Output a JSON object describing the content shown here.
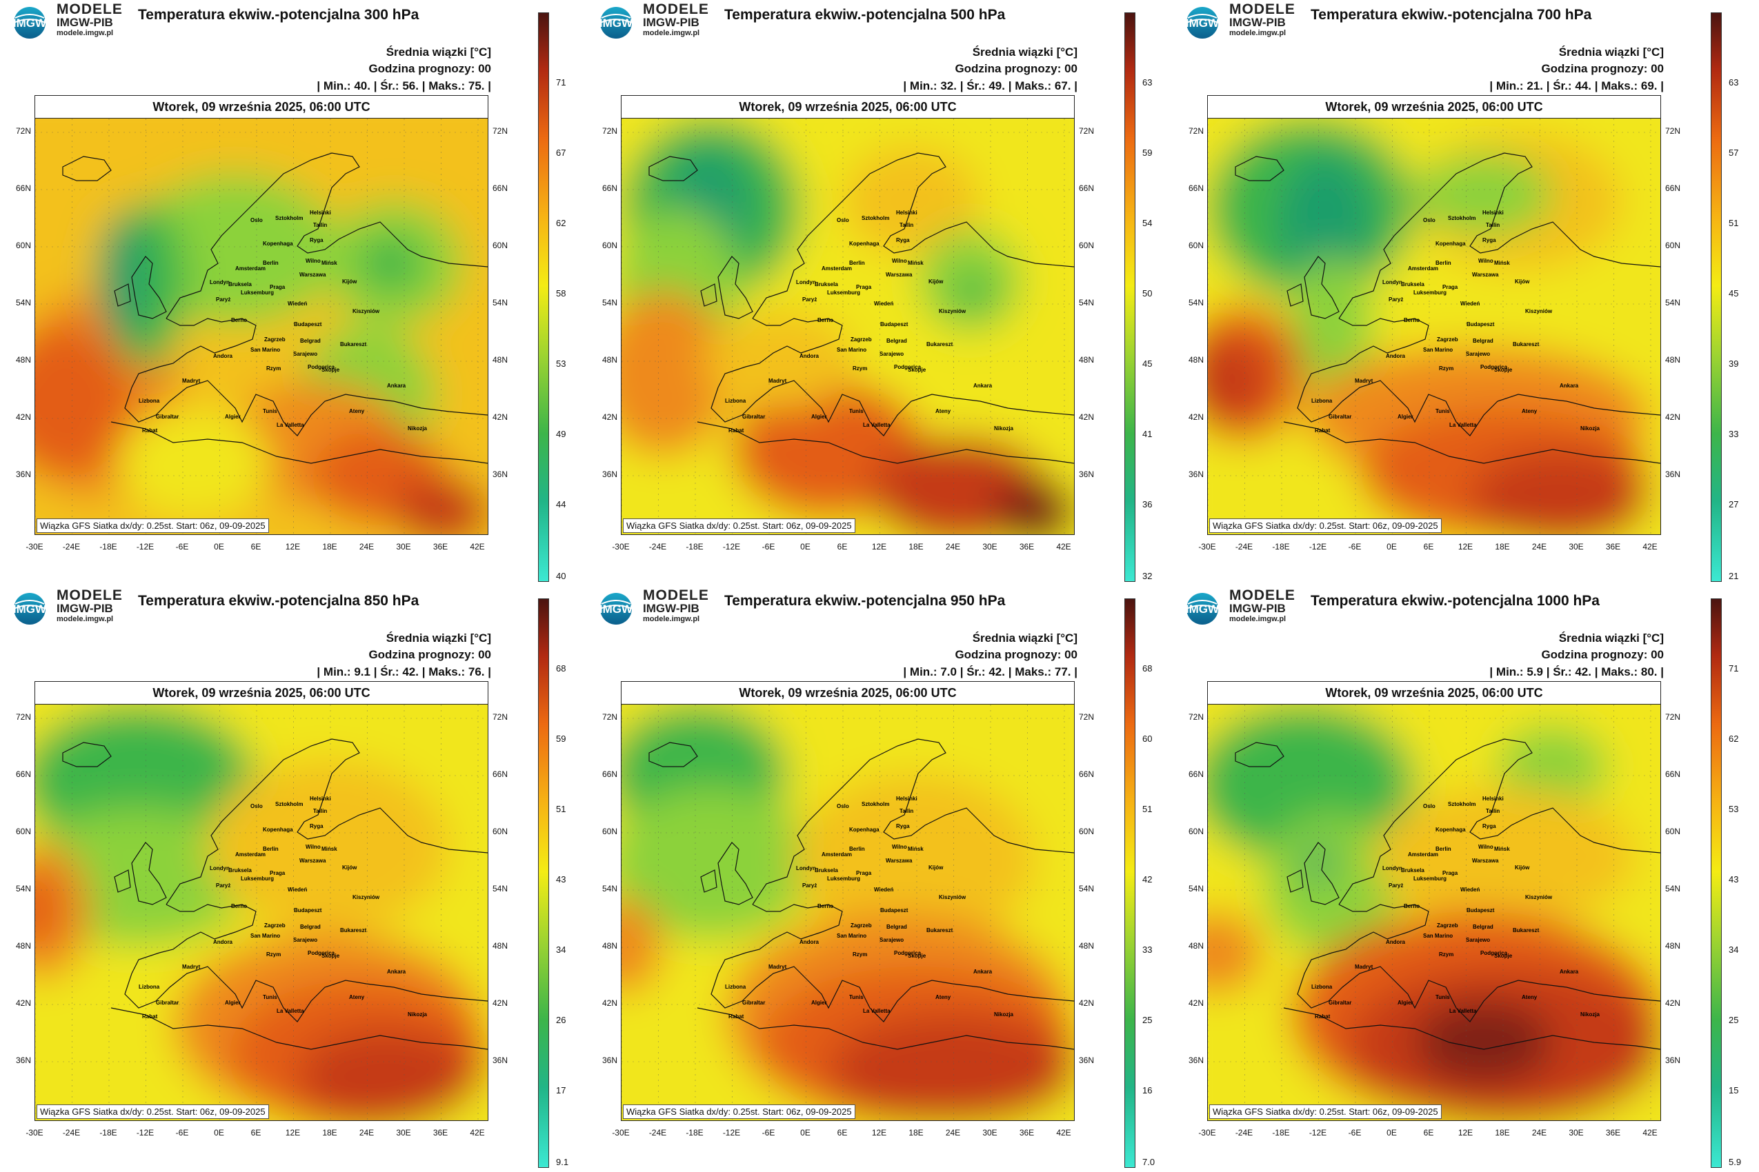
{
  "brand": {
    "line1": "MODELE",
    "line2": "IMGW-PIB",
    "line3": "modele.imgw.pl",
    "logo_text": "IMGW"
  },
  "common": {
    "mean_label": "Średnia wiązki [°C]",
    "forecast_hour": "Godzina prognozy: 00",
    "validity": "Wtorek, 09 września 2025, 06:00 UTC",
    "source": "Wiązka GFS Siatka dx/dy: 0.25st. Start: 06z, 09-09-2025",
    "min_label": "Min.:",
    "avg_label": "Śr.:",
    "max_label": "Maks.:"
  },
  "lat_labels": [
    "72N",
    "66N",
    "60N",
    "54N",
    "48N",
    "42N",
    "36N"
  ],
  "lon_labels": [
    "-30E",
    "-24E",
    "-18E",
    "-12E",
    "-6E",
    "0E",
    "6E",
    "12E",
    "18E",
    "24E",
    "30E",
    "36E",
    "42E"
  ],
  "cities": [
    "Oslo",
    "Sztokholm",
    "Helsinki",
    "Tallin",
    "Ryga",
    "Wilno",
    "Mińsk",
    "Kopenhaga",
    "Amsterdam",
    "Berlin",
    "Warszawa",
    "Londyn",
    "Bruksela",
    "Luksemburg",
    "Paryż",
    "Praga",
    "Kijów",
    "Berno",
    "Wiedeń",
    "Kiszyniów",
    "Zagrzeb",
    "Budapeszt",
    "Belgrad",
    "Bukareszt",
    "Sarajewo",
    "San Marino",
    "Andora",
    "Rzym",
    "Podgorica",
    "Skopje",
    "Madryt",
    "Lizbona",
    "Ankara",
    "Ateny",
    "Gibraltar",
    "Algier",
    "Tunis",
    "La Valletta",
    "Rabat",
    "Nikozja"
  ],
  "panels": [
    {
      "title": "Temperatura ekwiw.-potencjalna 300 hPa",
      "min": "40.",
      "avg": "56.",
      "max": "75.",
      "ticks": [
        "71",
        "67",
        "62",
        "58",
        "53",
        "49",
        "44",
        "40"
      ],
      "regime": "p300"
    },
    {
      "title": "Temperatura ekwiw.-potencjalna 500 hPa",
      "min": "32.",
      "avg": "49.",
      "max": "67.",
      "ticks": [
        "63",
        "59",
        "54",
        "50",
        "45",
        "41",
        "36",
        "32"
      ],
      "regime": "p500"
    },
    {
      "title": "Temperatura ekwiw.-potencjalna 700 hPa",
      "min": "21.",
      "avg": "44.",
      "max": "69.",
      "ticks": [
        "63",
        "57",
        "51",
        "45",
        "39",
        "33",
        "27",
        "21"
      ],
      "regime": "p700"
    },
    {
      "title": "Temperatura ekwiw.-potencjalna 850 hPa",
      "min": "9.1",
      "avg": "42.",
      "max": "76.",
      "ticks": [
        "68",
        "59",
        "51",
        "43",
        "34",
        "26",
        "17",
        "9.1"
      ],
      "regime": "p850"
    },
    {
      "title": "Temperatura ekwiw.-potencjalna 950 hPa",
      "min": "7.0",
      "avg": "42.",
      "max": "77.",
      "ticks": [
        "68",
        "60",
        "51",
        "42",
        "33",
        "25",
        "16",
        "7.0"
      ],
      "regime": "p950"
    },
    {
      "title": "Temperatura ekwiw.-potencjalna 1000 hPa",
      "min": "5.9",
      "avg": "42.",
      "max": "80.",
      "ticks": [
        "71",
        "62",
        "53",
        "43",
        "34",
        "25",
        "15",
        "5.9"
      ],
      "regime": "p1000"
    }
  ]
}
